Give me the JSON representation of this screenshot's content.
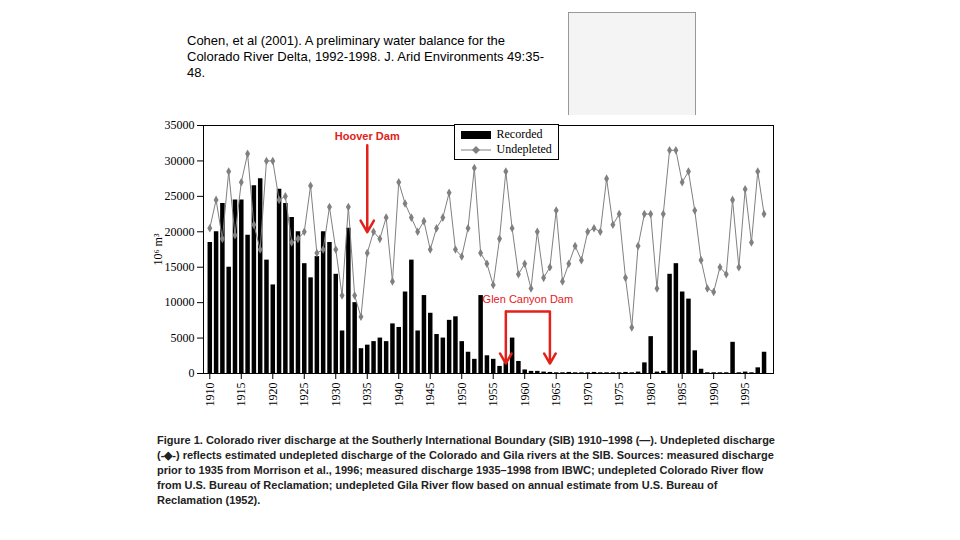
{
  "chart_data": {
    "type": "bar",
    "citation": "Cohen, et al (2001). A preliminary water balance for the Colorado River Delta, 1992-1998. J. Arid Environments 49:35-48.",
    "caption": "Figure 1. Colorado river discharge at the Southerly International Boundary (SIB) 1910–1998 (—). Undepleted discharge (-◆-) reflects estimated undepleted discharge of the Colorado and Gila rivers at the SIB. Sources: measured discharge prior to 1935 from Morrison et al., 1996; measured discharge 1935–1998 from IBWC; undepleted Colorado River flow from U.S. Bureau of Reclamation; undepleted Gila River flow based on annual estimate from U.S. Bureau of Reclamation (1952).",
    "ylabel": "10⁶ m³",
    "x": [
      1910,
      1911,
      1912,
      1913,
      1914,
      1915,
      1916,
      1917,
      1918,
      1919,
      1920,
      1921,
      1922,
      1923,
      1924,
      1925,
      1926,
      1927,
      1928,
      1929,
      1930,
      1931,
      1932,
      1933,
      1934,
      1935,
      1936,
      1937,
      1938,
      1939,
      1940,
      1941,
      1942,
      1943,
      1944,
      1945,
      1946,
      1947,
      1948,
      1949,
      1950,
      1951,
      1952,
      1953,
      1954,
      1955,
      1956,
      1957,
      1958,
      1959,
      1960,
      1961,
      1962,
      1963,
      1964,
      1965,
      1966,
      1967,
      1968,
      1969,
      1970,
      1971,
      1972,
      1973,
      1974,
      1975,
      1976,
      1977,
      1978,
      1979,
      1980,
      1981,
      1982,
      1983,
      1984,
      1985,
      1986,
      1987,
      1988,
      1989,
      1990,
      1991,
      1992,
      1993,
      1994,
      1995,
      1996,
      1997,
      1998
    ],
    "series": [
      {
        "name": "Recorded",
        "type": "bar",
        "color": "#000000",
        "values": [
          18500,
          20000,
          24000,
          15000,
          24500,
          24500,
          19500,
          26500,
          27500,
          16000,
          12500,
          26000,
          24000,
          22000,
          20000,
          15500,
          13500,
          16500,
          20000,
          18500,
          14000,
          6000,
          20500,
          10000,
          3500,
          4000,
          4500,
          5000,
          4500,
          7000,
          6500,
          11500,
          16000,
          6000,
          11000,
          8500,
          5500,
          5000,
          7500,
          8000,
          4500,
          3000,
          2000,
          11000,
          2500,
          2000,
          1000,
          1500,
          5000,
          1700,
          500,
          300,
          300,
          200,
          150,
          100,
          100,
          150,
          100,
          100,
          100,
          150,
          100,
          100,
          100,
          100,
          150,
          100,
          200,
          1500,
          5200,
          200,
          300,
          14000,
          15500,
          11500,
          10500,
          3200,
          600,
          100,
          100,
          100,
          100,
          4400,
          100,
          200,
          100,
          800,
          3000
        ]
      },
      {
        "name": "Undepleted",
        "type": "line",
        "color": "#808080",
        "marker": "diamond",
        "values": [
          20500,
          24500,
          19000,
          28500,
          19500,
          27000,
          31000,
          21000,
          17500,
          30000,
          30000,
          24500,
          25000,
          18500,
          19000,
          20000,
          26500,
          17000,
          17500,
          23500,
          17500,
          11000,
          23500,
          11000,
          8000,
          17000,
          20000,
          19000,
          22000,
          13000,
          27000,
          24000,
          22000,
          20000,
          21500,
          17500,
          20500,
          22000,
          25500,
          17500,
          16500,
          20500,
          29000,
          17000,
          15500,
          12500,
          19000,
          28500,
          20500,
          14000,
          15500,
          12000,
          20000,
          13500,
          15000,
          23000,
          13000,
          15500,
          18000,
          16000,
          20000,
          20500,
          20000,
          27500,
          21000,
          22500,
          13500,
          6500,
          18000,
          22500,
          22500,
          12000,
          22500,
          31500,
          31500,
          27000,
          28500,
          23000,
          16000,
          12000,
          11500,
          15000,
          14000,
          24500,
          15000,
          26000,
          18500,
          28500,
          22500
        ]
      }
    ],
    "xlim": [
      1909,
      1999.5
    ],
    "xticks": [
      1910,
      1915,
      1920,
      1925,
      1930,
      1935,
      1940,
      1945,
      1950,
      1955,
      1960,
      1965,
      1970,
      1975,
      1980,
      1985,
      1990,
      1995
    ],
    "ylim": [
      0,
      35000
    ],
    "yticks": [
      0,
      5000,
      10000,
      15000,
      20000,
      25000,
      30000,
      35000
    ],
    "grid": false,
    "legend": "top",
    "annotations": [
      {
        "text": "Hoover Dam",
        "x": 1935
      },
      {
        "text": "Glen Canyon Dam",
        "x": [
          1957,
          1964
        ]
      }
    ]
  }
}
